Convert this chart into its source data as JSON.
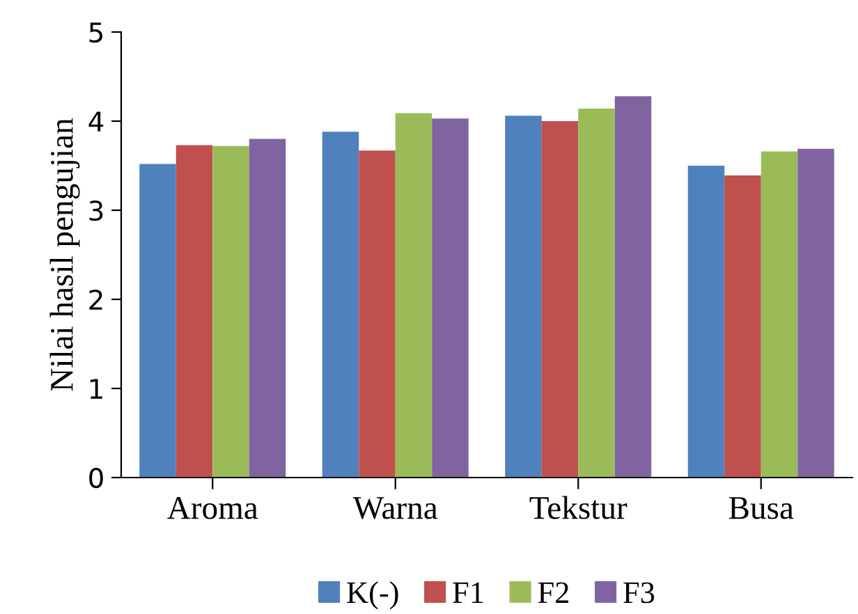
{
  "chart_data": {
    "type": "bar",
    "ylabel": "Nilai hasil pengujian",
    "categories": [
      "Aroma",
      "Warna",
      "Tekstur",
      "Busa"
    ],
    "series": [
      {
        "name": "K(-)",
        "color": "#4f81bd",
        "values": [
          3.52,
          3.88,
          4.06,
          3.5
        ]
      },
      {
        "name": "F1",
        "color": "#c0504d",
        "values": [
          3.73,
          3.67,
          4.0,
          3.39
        ]
      },
      {
        "name": "F2",
        "color": "#9bbb59",
        "values": [
          3.72,
          4.09,
          4.14,
          3.66
        ]
      },
      {
        "name": "F3",
        "color": "#8064a2",
        "values": [
          3.8,
          4.03,
          4.28,
          3.69
        ]
      }
    ],
    "ylim": [
      0,
      5
    ],
    "yticks": [
      0,
      1,
      2,
      3,
      4,
      5
    ],
    "grid": false,
    "legend": "bottom"
  }
}
